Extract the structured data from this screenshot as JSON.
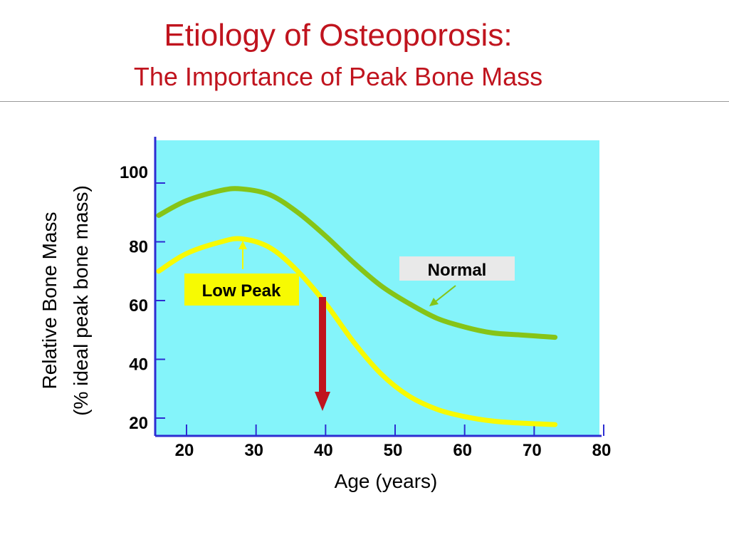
{
  "slide": {
    "title": "Etiology of Osteoporosis:",
    "subtitle": "The Importance of Peak Bone Mass"
  },
  "chart_data": {
    "type": "line",
    "xlabel": "Age (years)",
    "ylabel_line1": "Relative Bone Mass",
    "ylabel_line2": "(% ideal peak bone mass)",
    "x_ticks": [
      20,
      30,
      40,
      50,
      60,
      70,
      80
    ],
    "y_ticks": [
      20,
      40,
      60,
      80,
      100
    ],
    "xlim": [
      16,
      80
    ],
    "ylim": [
      18,
      112
    ],
    "background_color": "#84f4fa",
    "axis_color": "#2d2dd2",
    "grid": false,
    "series": [
      {
        "name": "Normal",
        "color": "#86c417",
        "points": [
          [
            16,
            89
          ],
          [
            20,
            94
          ],
          [
            25,
            97.5
          ],
          [
            28,
            98
          ],
          [
            32,
            96
          ],
          [
            36,
            90
          ],
          [
            40,
            82
          ],
          [
            44,
            73
          ],
          [
            48,
            65
          ],
          [
            52,
            59
          ],
          [
            56,
            54
          ],
          [
            60,
            51
          ],
          [
            64,
            49
          ],
          [
            68,
            48.3
          ],
          [
            73,
            47.5
          ]
        ]
      },
      {
        "name": "Low Peak",
        "color": "#f7fa02",
        "points": [
          [
            16,
            70
          ],
          [
            20,
            76
          ],
          [
            25,
            80
          ],
          [
            28,
            81
          ],
          [
            32,
            78
          ],
          [
            36,
            70
          ],
          [
            40,
            59
          ],
          [
            44,
            46
          ],
          [
            48,
            35
          ],
          [
            52,
            27.5
          ],
          [
            56,
            23
          ],
          [
            60,
            20.5
          ],
          [
            64,
            19
          ],
          [
            68,
            18.3
          ],
          [
            73,
            17.8
          ]
        ]
      }
    ],
    "annotations": {
      "normal_label": "Normal",
      "low_peak_label": "Low Peak",
      "normal_label_bg": "#e9e9e9",
      "low_peak_label_bg": "#f7fa02",
      "decline_arrow_color": "#c0141e"
    }
  }
}
